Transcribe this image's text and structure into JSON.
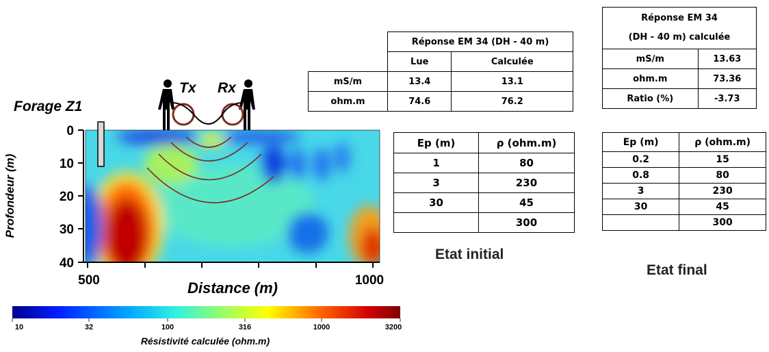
{
  "section": {
    "borehole_label": "Forage Z1",
    "tx": "Tx",
    "rx": "Rx",
    "y_axis_label": "Profondeur (m)",
    "y_ticks": [
      "0",
      "10",
      "20",
      "30",
      "40"
    ],
    "x_axis_label": "Distance (m)",
    "x_ticks": [
      "500",
      "1000"
    ],
    "colorbar": {
      "ticks": [
        "10",
        "32",
        "100",
        "316",
        "1000",
        "3200"
      ],
      "label": "Résistivité calculée (ohm.m)"
    }
  },
  "measured_table": {
    "title": "Réponse EM 34 (DH - 40 m)",
    "columns": [
      "Lue",
      "Calculée"
    ],
    "rows": [
      [
        "mS/m",
        "13.4",
        "13.1"
      ],
      [
        "ohm.m",
        "74.6",
        "76.2"
      ]
    ]
  },
  "calculated_table": {
    "title_lines": [
      "Réponse EM 34",
      "(DH - 40 m) calculée"
    ],
    "rows": [
      [
        "mS/m",
        "13.63"
      ],
      [
        "ohm.m",
        "73.36"
      ],
      [
        "Ratio (%)",
        "-3.73"
      ]
    ]
  },
  "initial_model": {
    "columns": [
      "Ep (m)",
      "ρ (ohm.m)"
    ],
    "rows": [
      [
        "1",
        "80"
      ],
      [
        "3",
        "230"
      ],
      [
        "30",
        "45"
      ],
      [
        null,
        "300"
      ]
    ],
    "caption": "Etat initial"
  },
  "final_model": {
    "columns": [
      "Ep (m)",
      "ρ (ohm.m)"
    ],
    "rows": [
      [
        "0.2",
        "15"
      ],
      [
        "0.8",
        "80"
      ],
      [
        "3",
        "230"
      ],
      [
        "30",
        "45"
      ],
      [
        null,
        "300"
      ]
    ],
    "caption": "Etat final"
  }
}
